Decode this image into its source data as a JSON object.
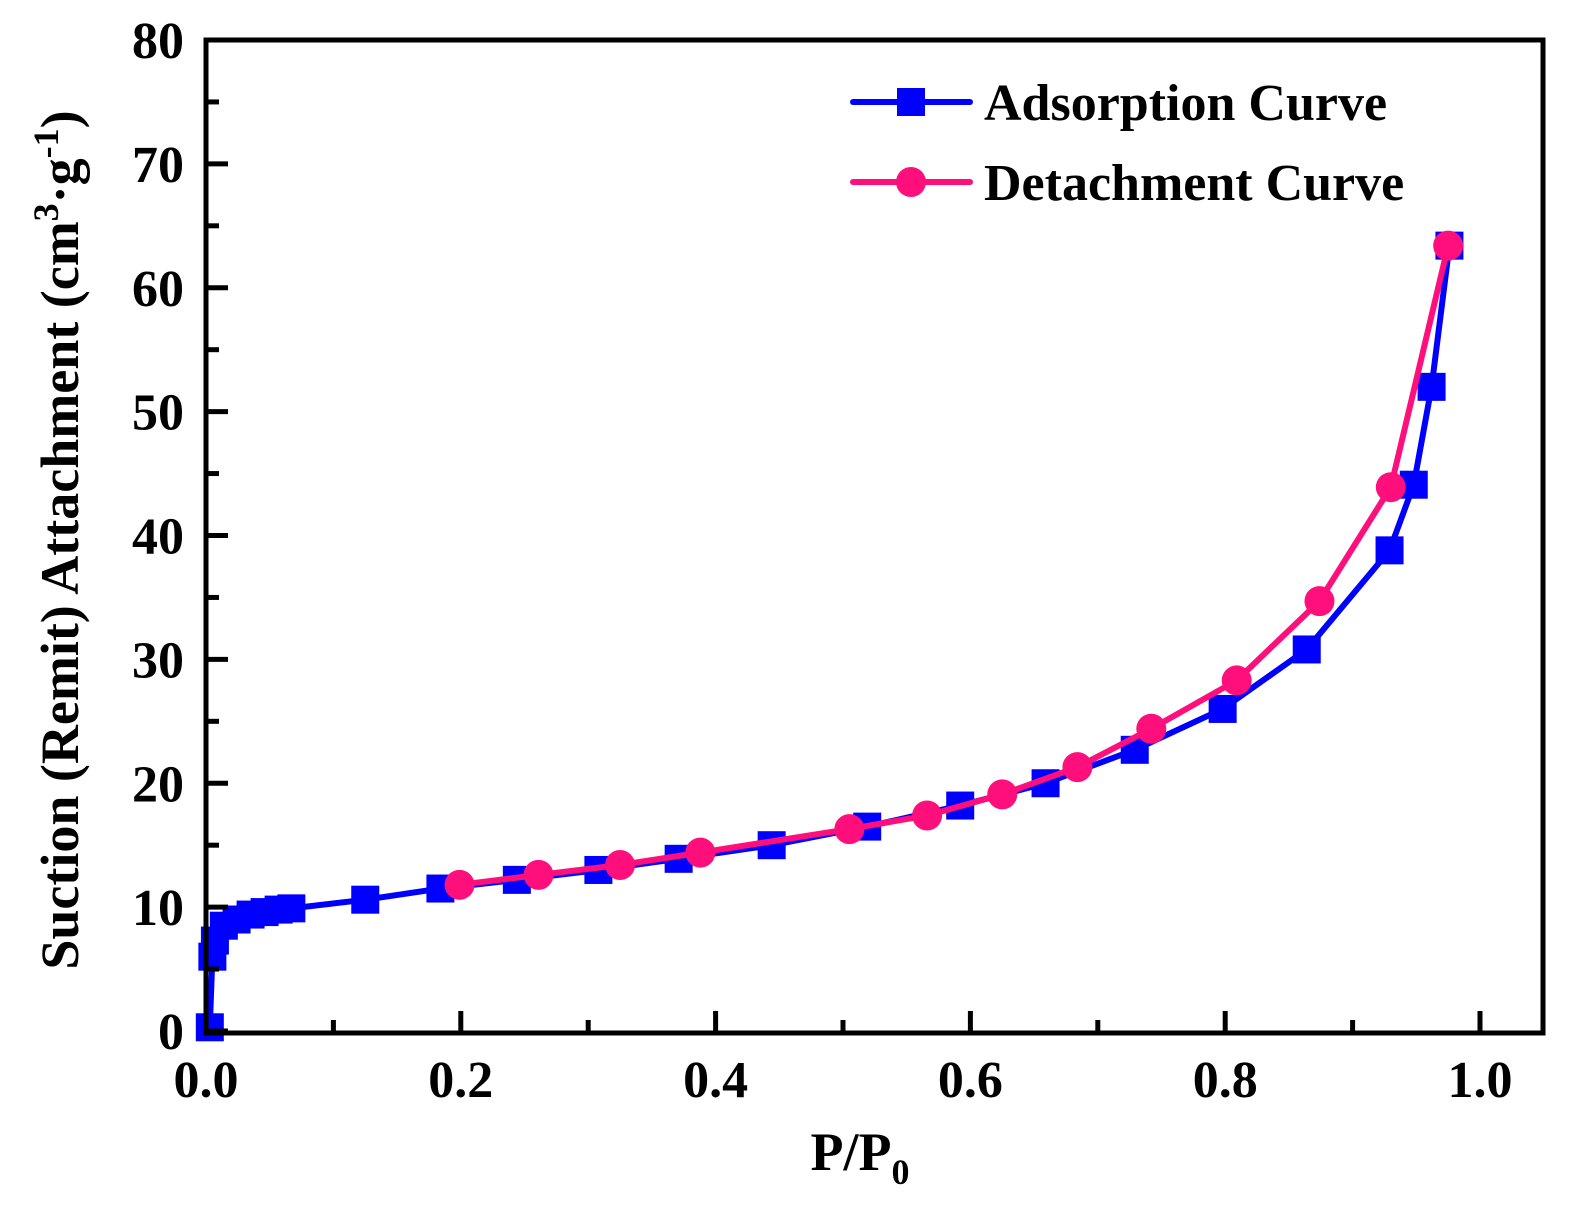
{
  "chart_data": {
    "type": "line",
    "title": "",
    "xlabel": "P/P",
    "xlabel_sub": "0",
    "ylabel": "Suction (Remit) Attachment (cm",
    "ylabel_sup1": "3",
    "ylabel_mid": "·g",
    "ylabel_sup2": "-1",
    "ylabel_end": ")",
    "xlim": [
      0,
      1.05
    ],
    "ylim": [
      0,
      80
    ],
    "xticks": [
      0.0,
      0.2,
      0.4,
      0.6,
      0.8,
      1.0
    ],
    "xtick_labels": [
      "0.0",
      "0.2",
      "0.4",
      "0.6",
      "0.8",
      "1.0"
    ],
    "yticks": [
      0,
      10,
      20,
      30,
      40,
      50,
      60,
      70,
      80
    ],
    "ytick_labels": [
      "0",
      "10",
      "20",
      "30",
      "40",
      "50",
      "60",
      "70",
      "80"
    ],
    "grid": false,
    "legend_position": "top-right",
    "series": [
      {
        "name": "Adsorption Curve",
        "marker": "square",
        "color": "#0000ff",
        "x": [
          0.003,
          0.005,
          0.007,
          0.014,
          0.024,
          0.035,
          0.046,
          0.057,
          0.067,
          0.125,
          0.184,
          0.244,
          0.308,
          0.371,
          0.444,
          0.519,
          0.592,
          0.659,
          0.729,
          0.798,
          0.864,
          0.929,
          0.948,
          0.962,
          0.976
        ],
        "y": [
          0.3,
          6.0,
          7.3,
          8.5,
          9.0,
          9.4,
          9.6,
          9.8,
          9.9,
          10.6,
          11.5,
          12.2,
          13.0,
          13.9,
          15.0,
          16.5,
          18.2,
          20.0,
          22.7,
          26.0,
          30.8,
          38.8,
          44.1,
          52.0,
          63.4
        ]
      },
      {
        "name": "Detachment Curve",
        "marker": "circle",
        "color": "#ff0f7b",
        "x": [
          0.199,
          0.261,
          0.325,
          0.388,
          0.505,
          0.566,
          0.625,
          0.684,
          0.742,
          0.809,
          0.874,
          0.93,
          0.975
        ],
        "y": [
          11.8,
          12.6,
          13.4,
          14.4,
          16.3,
          17.4,
          19.1,
          21.3,
          24.4,
          28.3,
          34.7,
          43.9,
          63.4
        ]
      }
    ]
  }
}
